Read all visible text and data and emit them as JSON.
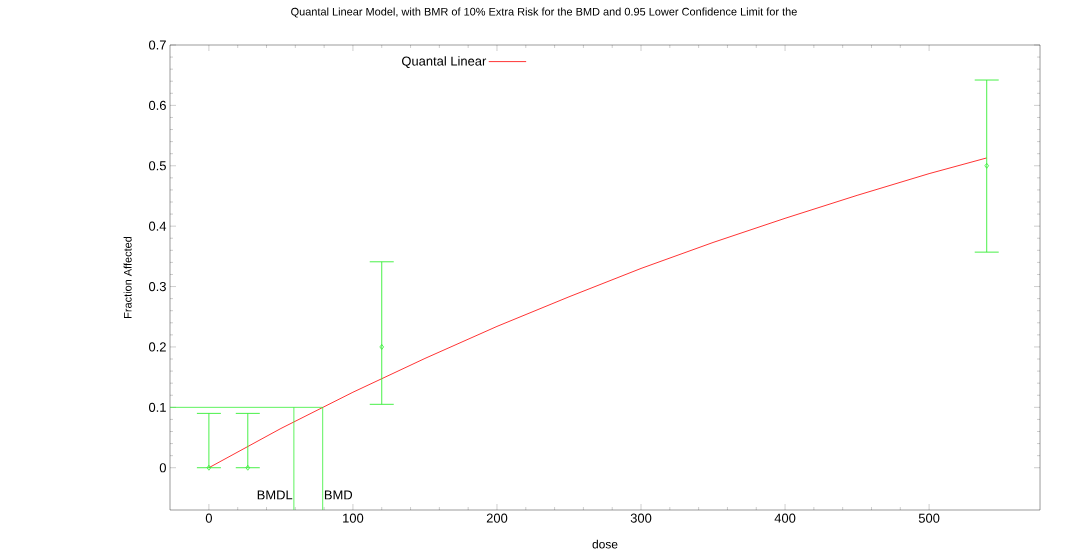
{
  "chart_data": {
    "type": "scatter",
    "title": "Quantal Linear Model, with BMR of 10% Extra Risk for the BMD and 0.95 Lower Confidence Limit for the",
    "xlabel": "dose",
    "ylabel": "Fraction Affected",
    "xlim": [
      -27,
      577
    ],
    "ylim": [
      -0.07,
      0.7
    ],
    "xticks": [
      0,
      100,
      200,
      300,
      400,
      500
    ],
    "yticks": [
      0,
      0.1,
      0.2,
      0.3,
      0.4,
      0.5,
      0.6,
      0.7
    ],
    "legend": "top",
    "series": [
      {
        "type": "line",
        "name": "Quantal Linear",
        "color": "#ff0000",
        "x": [
          0,
          50,
          100,
          150,
          200,
          250,
          300,
          350,
          400,
          450,
          500,
          540
        ],
        "values": [
          0,
          0.065,
          0.125,
          0.181,
          0.234,
          0.283,
          0.33,
          0.373,
          0.413,
          0.451,
          0.487,
          0.513
        ]
      },
      {
        "color": "#33ee33",
        "marker": "diamond",
        "x": [
          0,
          27,
          120,
          540
        ],
        "values": [
          0,
          0,
          0.2,
          0.5
        ],
        "errors": [
          [
            0,
            0.09
          ],
          [
            0,
            0.09
          ],
          [
            0.105,
            0.341
          ],
          [
            0.357,
            0.642
          ]
        ]
      },
      {
        "type": "line",
        "color": "#33ee33",
        "x": [
          -27,
          79,
          79
        ],
        "values": [
          0.1,
          0.1,
          -0.07
        ]
      },
      {
        "type": "line",
        "color": "#33ee33",
        "x": [
          59,
          59
        ],
        "values": [
          0.1,
          -0.07
        ]
      }
    ],
    "annotations": [
      {
        "text": "BMDL",
        "x": 59,
        "y": -0.045
      },
      {
        "text": "BMD",
        "x": 79,
        "y": -0.045
      }
    ]
  }
}
